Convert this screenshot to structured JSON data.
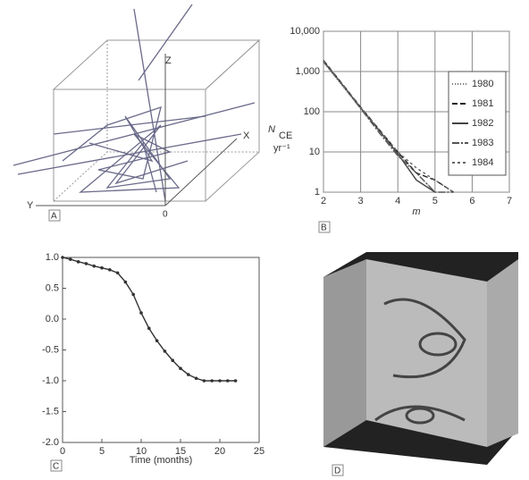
{
  "panels": {
    "a": {
      "label": "A",
      "axis_z": "Z",
      "axis_x": "X",
      "axis_y": "Y",
      "origin": "0"
    },
    "b": {
      "label": "B"
    },
    "c": {
      "label": "C"
    },
    "d": {
      "label": "D"
    }
  },
  "chart_data": [
    {
      "type": "line",
      "ylabel": "N",
      "ylabel_sub": "CE",
      "yunit": "yr⁻¹",
      "xlabel": "m",
      "x": [
        2,
        2.5,
        3,
        3.5,
        4,
        4.5,
        5,
        5.5
      ],
      "series": [
        {
          "name": "1980",
          "color": "#777777",
          "dash": "1 2",
          "values": [
            1700,
            450,
            120,
            32,
            9,
            3,
            1,
            null
          ]
        },
        {
          "name": "1981",
          "color": "#222222",
          "dash": "6 3",
          "values": [
            1900,
            500,
            130,
            36,
            10,
            3,
            2,
            1
          ]
        },
        {
          "name": "1982",
          "color": "#444444",
          "dash": "",
          "values": [
            1800,
            480,
            125,
            34,
            9,
            2,
            1,
            null
          ]
        },
        {
          "name": "1983",
          "color": "#555555",
          "dash": "8 2 2 2",
          "values": [
            1750,
            470,
            120,
            30,
            8,
            3,
            1,
            1
          ]
        },
        {
          "name": "1984",
          "color": "#666666",
          "dash": "3 3",
          "values": [
            1850,
            490,
            128,
            35,
            10,
            4,
            2,
            1
          ]
        }
      ],
      "xlim": [
        2,
        7
      ],
      "xticks": [
        2,
        3,
        4,
        5,
        6,
        7
      ],
      "ylim": [
        1,
        10000
      ],
      "log_y": true,
      "yticks": [
        1,
        10,
        100,
        {
          "value": 1000,
          "label": "1,000"
        },
        {
          "value": 10000,
          "label": "10,000"
        }
      ],
      "grid": true,
      "legend": "upper right"
    },
    {
      "type": "line",
      "xlabel": "Time (months)",
      "color": "#333333",
      "markers": true,
      "x": [
        0,
        1,
        2,
        3,
        4,
        5,
        6,
        7,
        8,
        9,
        10,
        11,
        12,
        13,
        14,
        15,
        16,
        17,
        18,
        19,
        20,
        21,
        22
      ],
      "values": [
        1.0,
        0.97,
        0.93,
        0.9,
        0.86,
        0.83,
        0.8,
        0.75,
        0.6,
        0.4,
        0.1,
        -0.15,
        -0.35,
        -0.52,
        -0.67,
        -0.8,
        -0.9,
        -0.96,
        -1.0,
        -1.0,
        -1.0,
        -1.0,
        -1.0
      ],
      "xlim": [
        0,
        25
      ],
      "xticks": [
        0,
        5,
        10,
        15,
        20,
        25
      ],
      "ylim": [
        -2,
        1
      ],
      "yticks": [
        {
          "value": 1,
          "label": "1.0"
        },
        {
          "value": 0.5,
          "label": "0.5"
        },
        {
          "value": 0,
          "label": "0.0"
        },
        {
          "value": -0.5,
          "label": "-0.5"
        },
        {
          "value": -1,
          "label": "-1.0"
        },
        {
          "value": -1.5,
          "label": "-1.5"
        },
        {
          "value": -2,
          "label": "-2.0"
        }
      ],
      "grid": false
    }
  ]
}
